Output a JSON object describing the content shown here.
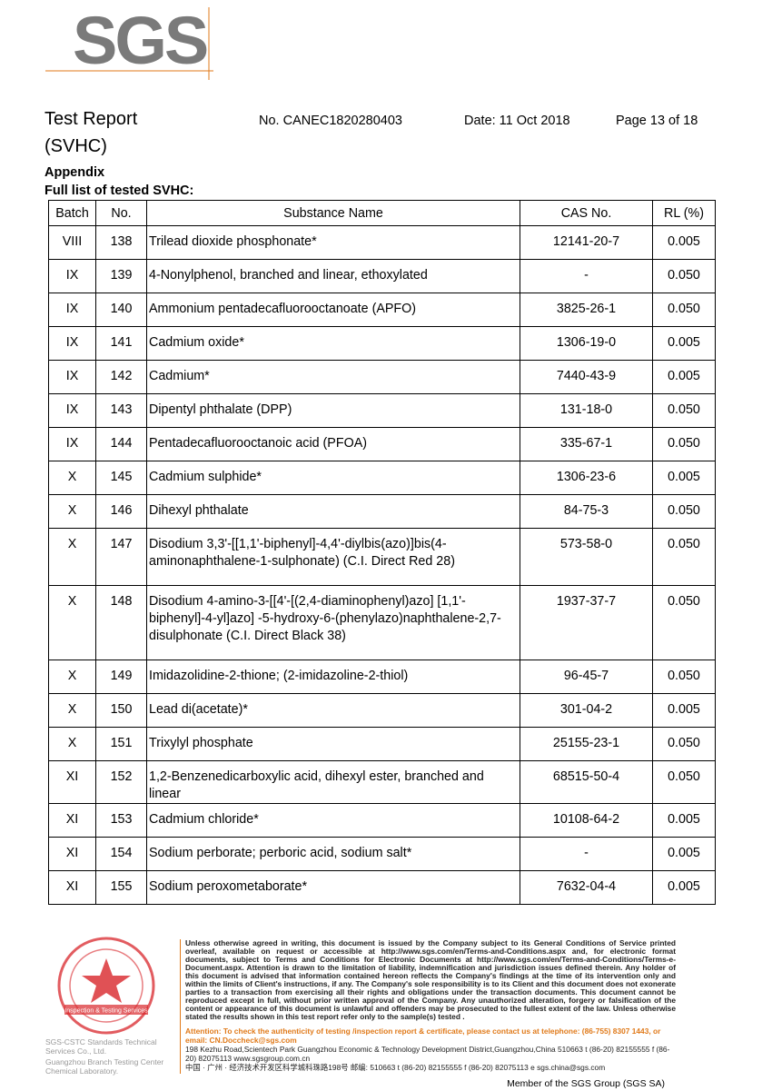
{
  "logo": "SGS",
  "header": {
    "title_line1": "Test Report",
    "title_line2": "(SVHC)",
    "report_no": "No. CANEC1820280403",
    "date": "Date: 11 Oct 2018",
    "page": "Page 13 of 18"
  },
  "section": "Appendix",
  "subsection": "Full list of tested SVHC:",
  "table": {
    "columns": [
      "Batch",
      "No.",
      "Substance Name",
      "CAS No.",
      "RL (%)"
    ],
    "rows": [
      [
        "VIII",
        "138",
        "Trilead dioxide phosphonate*",
        "12141-20-7",
        "0.005"
      ],
      [
        "IX",
        "139",
        "4-Nonylphenol, branched and linear, ethoxylated",
        "-",
        "0.050"
      ],
      [
        "IX",
        "140",
        "Ammonium pentadecafluorooctanoate (APFO)",
        "3825-26-1",
        "0.050"
      ],
      [
        "IX",
        "141",
        "Cadmium oxide*",
        "1306-19-0",
        "0.005"
      ],
      [
        "IX",
        "142",
        "Cadmium*",
        "7440-43-9",
        "0.005"
      ],
      [
        "IX",
        "143",
        "Dipentyl phthalate (DPP)",
        "131-18-0",
        "0.050"
      ],
      [
        "IX",
        "144",
        "Pentadecafluorooctanoic acid (PFOA)",
        "335-67-1",
        "0.050"
      ],
      [
        "X",
        "145",
        "Cadmium sulphide*",
        "1306-23-6",
        "0.005"
      ],
      [
        "X",
        "146",
        "Dihexyl phthalate",
        "84-75-3",
        "0.050"
      ],
      [
        "X",
        "147",
        "Disodium 3,3'-[[1,1'-biphenyl]-4,4'-diylbis(azo)]bis(4-aminonaphthalene-1-sulphonate) (C.I. Direct Red 28)",
        "573-58-0",
        "0.050"
      ],
      [
        "X",
        "148",
        "Disodium 4-amino-3-[[4'-[(2,4-diaminophenyl)azo] [1,1'-biphenyl]-4-yl]azo] -5-hydroxy-6-(phenylazo)naphthalene-2,7-disulphonate (C.I. Direct Black 38)",
        "1937-37-7",
        "0.050"
      ],
      [
        "X",
        "149",
        "Imidazolidine-2-thione; (2-imidazoline-2-thiol)",
        "96-45-7",
        "0.050"
      ],
      [
        "X",
        "150",
        "Lead di(acetate)*",
        "301-04-2",
        "0.005"
      ],
      [
        "X",
        "151",
        "Trixylyl phosphate",
        "25155-23-1",
        "0.050"
      ],
      [
        "XI",
        "152",
        "1,2-Benzenedicarboxylic acid, dihexyl ester, branched and linear",
        "68515-50-4",
        "0.050"
      ],
      [
        "XI",
        "153",
        "Cadmium chloride*",
        "10108-64-2",
        "0.005"
      ],
      [
        "XI",
        "154",
        "Sodium perborate; perboric acid, sodium salt*",
        "-",
        "0.005"
      ],
      [
        "XI",
        "155",
        "Sodium peroxometaborate*",
        "7632-04-4",
        "0.005"
      ]
    ]
  },
  "footer": {
    "disclaimer": "Unless otherwise agreed in writing, this document is issued by the Company subject to its General Conditions of Service printed overleaf, available on request or accessible at http://www.sgs.com/en/Terms-and-Conditions.aspx and, for electronic format documents, subject to Terms and Conditions for Electronic Documents at http://www.sgs.com/en/Terms-and-Conditions/Terms-e-Document.aspx. Attention is drawn to the limitation of liability, indemnification and jurisdiction issues defined therein. Any holder of this document is advised that information contained hereon reflects the Company's findings at the time of its intervention only and within the limits of Client's instructions, if any. The Company's sole responsibility is to its Client and this document does not exonerate parties to a transaction from exercising all their rights and obligations under the transaction documents. This document cannot be reproduced except in full, without prior written approval of the Company. Any unauthorized alteration, forgery or falsification of the content or appearance of this document is unlawful and offenders may be prosecuted to the fullest extent of the law. Unless otherwise stated the results shown in this test report refer only to the sample(s) tested .",
    "attention": "Attention: To check the authenticity of testing /inspection report & certificate, please contact us at telephone: (86-755) 8307 1443, or email: CN.Doccheck@sgs.com",
    "address_en": "198 Kezhu Road,Scientech Park Guangzhou Economic & Technology Development District,Guangzhou,China  510663   t (86-20) 82155555   f (86-20) 82075113   www.sgsgroup.com.cn",
    "address_cn": "中国 · 广州 · 经济技术开发区科学城科珠路198号      邮编: 510663   t (86-20) 82155555   f (86-20) 82075113   e sgs.china@sgs.com",
    "company_line1": "SGS-CSTC Standards Technical Services Co., Ltd.",
    "company_line2": "Guangzhou Branch Testing Center Chemical Laboratory.",
    "stamp_text": "Inspection & Testing Services",
    "member": "Member of the SGS Group (SGS SA)"
  },
  "colors": {
    "stamp": "#d8262b",
    "attention": "#e07a1a",
    "logo": "#7a7a7a"
  }
}
